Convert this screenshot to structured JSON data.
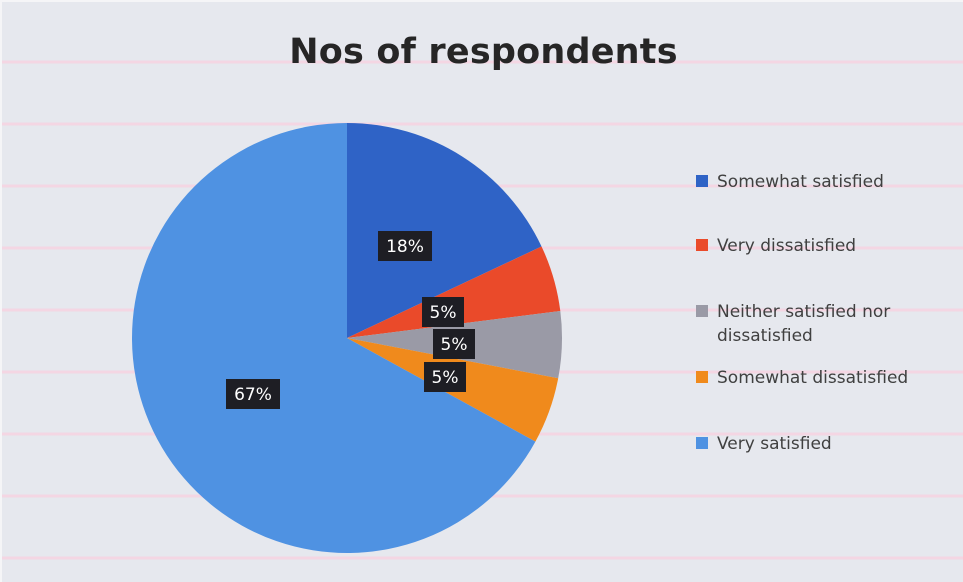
{
  "chart_data": {
    "type": "pie",
    "title": "Nos of respondents",
    "slices": [
      {
        "label": "Somewhat satisfied",
        "value": 18,
        "display": "18%",
        "color": "#2f63c6"
      },
      {
        "label": "Very dissatisfied",
        "value": 5,
        "display": "5%",
        "color": "#ea4a2a"
      },
      {
        "label": "Neither satisfied nor dissatisfied",
        "value": 5,
        "display": "5%",
        "color": "#9a9aa6"
      },
      {
        "label": "Somewhat dissatisfied",
        "value": 5,
        "display": "5%",
        "color": "#f08a1c"
      },
      {
        "label": "Very satisfied",
        "value": 67,
        "display": "67%",
        "color": "#4f92e2"
      }
    ],
    "legend_position": "right",
    "data_labels": "percent"
  }
}
